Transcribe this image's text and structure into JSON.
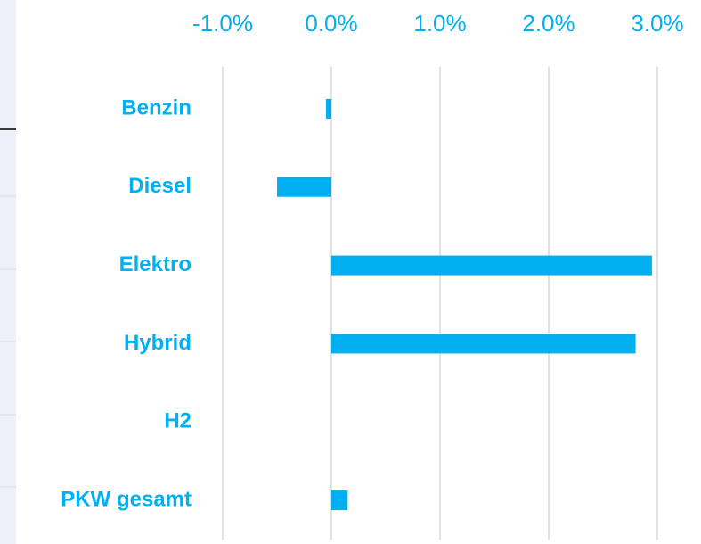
{
  "chart_data": {
    "type": "bar",
    "orientation": "horizontal",
    "categories": [
      "Benzin",
      "Diesel",
      "Elektro",
      "Hybrid",
      "H2",
      "PKW gesamt"
    ],
    "values": [
      -0.05,
      -0.5,
      2.95,
      2.8,
      0,
      0.15
    ],
    "color": "#00b0f0",
    "xlim": [
      -1,
      3
    ],
    "xticks": [
      {
        "value": -1,
        "label": "-1.0%"
      },
      {
        "value": 0,
        "label": "0.0%"
      },
      {
        "value": 1,
        "label": "1.0%"
      },
      {
        "value": 2,
        "label": "2.0%"
      },
      {
        "value": 3,
        "label": "3.0%"
      }
    ],
    "grid": true
  }
}
